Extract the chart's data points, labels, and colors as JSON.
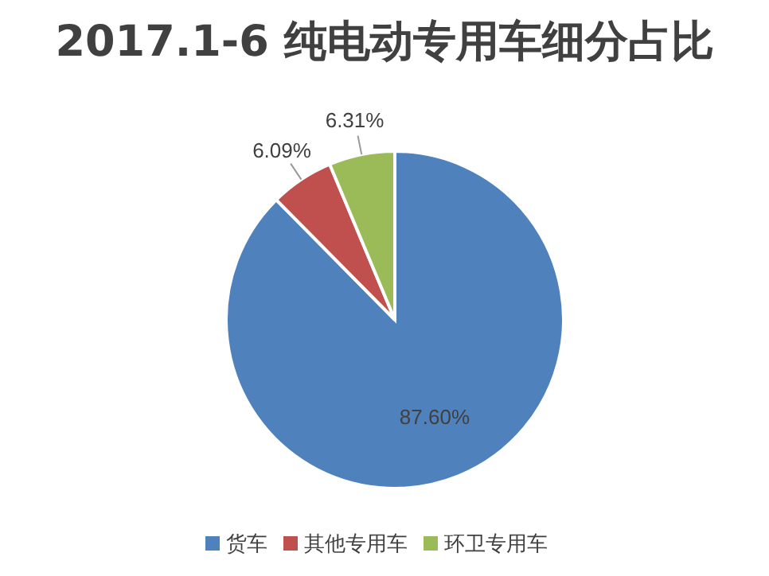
{
  "chart_data": {
    "type": "pie",
    "title": "2017.1-6 纯电动专用车细分占比",
    "categories": [
      "货车",
      "其他专用车",
      "环卫专用车"
    ],
    "values": [
      87.6,
      6.09,
      6.31
    ],
    "colors": [
      "#4f81bd",
      "#c0504d",
      "#9bbb59"
    ],
    "value_labels": [
      "87.60%",
      "6.09%",
      "6.31%"
    ],
    "legend": "bottom"
  }
}
